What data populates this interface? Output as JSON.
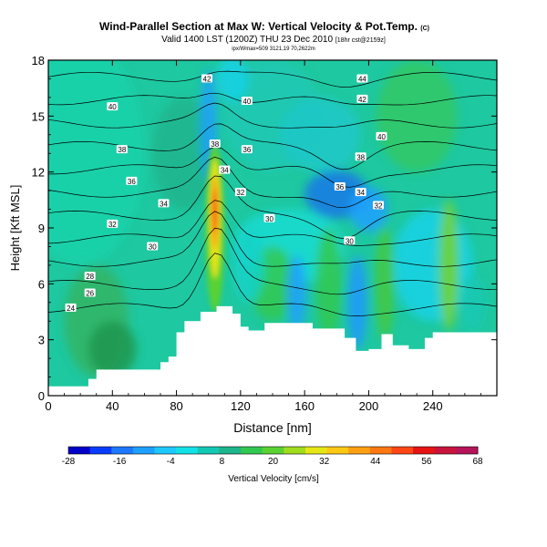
{
  "chart_data": {
    "type": "heatmap",
    "title": "Wind-Parallel Section at Max W: Vertical Velocity & Pot.Temp.",
    "title_mark": "(C)",
    "subtitle": "Valid 1400 LST (1200Z) THU 23 Dec 2010",
    "subtitle_note": "[18hr cst@2159z]",
    "info_line": "ipx/Wmax=509 3121,19 70,2622m",
    "xlabel": "Distance [nm]",
    "ylabel": "Height [Kft MSL]",
    "xlim": [
      0,
      280
    ],
    "ylim": [
      0,
      18
    ],
    "x_ticks": [
      0,
      40,
      80,
      120,
      160,
      200,
      240
    ],
    "y_ticks": [
      0,
      3,
      6,
      9,
      12,
      15,
      18
    ],
    "colorbar": {
      "label": "Vertical Velocity [cm/s]",
      "tick_labels": [
        -28,
        -16,
        -4,
        8,
        20,
        32,
        44,
        56,
        68
      ],
      "colors": [
        "#0000c8",
        "#0a3cff",
        "#1e78ff",
        "#1ea0ff",
        "#1ec8ff",
        "#14e1e6",
        "#14c8b4",
        "#1eb48c",
        "#32c850",
        "#5ad232",
        "#a0dc1e",
        "#e6e614",
        "#ffc814",
        "#ffa014",
        "#ff7814",
        "#ff4614",
        "#e61414",
        "#c8143c",
        "#b4145a"
      ]
    },
    "terrain_profile": [
      [
        0,
        0.5
      ],
      [
        20,
        0.5
      ],
      [
        25,
        0.9
      ],
      [
        30,
        1.4
      ],
      [
        60,
        1.4
      ],
      [
        70,
        1.8
      ],
      [
        75,
        2.1
      ],
      [
        80,
        3.4
      ],
      [
        85,
        4.0
      ],
      [
        95,
        4.5
      ],
      [
        105,
        4.8
      ],
      [
        110,
        4.8
      ],
      [
        115,
        4.4
      ],
      [
        120,
        3.7
      ],
      [
        125,
        3.5
      ],
      [
        135,
        3.9
      ],
      [
        150,
        3.9
      ],
      [
        165,
        3.6
      ],
      [
        175,
        3.6
      ],
      [
        185,
        3.1
      ],
      [
        192,
        2.4
      ],
      [
        200,
        2.5
      ],
      [
        208,
        3.3
      ],
      [
        215,
        2.7
      ],
      [
        225,
        2.5
      ],
      [
        235,
        3.1
      ],
      [
        240,
        3.4
      ],
      [
        260,
        3.4
      ],
      [
        270,
        3.4
      ],
      [
        280,
        3.4
      ]
    ],
    "theta_contour_labels": [
      {
        "text": "24",
        "x": 14,
        "y": 4.7
      },
      {
        "text": "26",
        "x": 26,
        "y": 5.5
      },
      {
        "text": "28",
        "x": 26,
        "y": 6.4
      },
      {
        "text": "30",
        "x": 65,
        "y": 8.0
      },
      {
        "text": "32",
        "x": 40,
        "y": 9.2
      },
      {
        "text": "34",
        "x": 72,
        "y": 10.3
      },
      {
        "text": "36",
        "x": 52,
        "y": 11.5
      },
      {
        "text": "38",
        "x": 46,
        "y": 13.2
      },
      {
        "text": "40",
        "x": 40,
        "y": 15.5
      },
      {
        "text": "42",
        "x": 99,
        "y": 17.0
      },
      {
        "text": "38",
        "x": 104,
        "y": 13.5
      },
      {
        "text": "34",
        "x": 110,
        "y": 12.1
      },
      {
        "text": "32",
        "x": 120,
        "y": 10.9
      },
      {
        "text": "36",
        "x": 124,
        "y": 13.2
      },
      {
        "text": "40",
        "x": 124,
        "y": 15.8
      },
      {
        "text": "30",
        "x": 138,
        "y": 9.5
      },
      {
        "text": "44",
        "x": 196,
        "y": 17.0
      },
      {
        "text": "42",
        "x": 196,
        "y": 15.9
      },
      {
        "text": "40",
        "x": 208,
        "y": 13.9
      },
      {
        "text": "38",
        "x": 195,
        "y": 12.8
      },
      {
        "text": "36",
        "x": 182,
        "y": 11.2
      },
      {
        "text": "34",
        "x": 195,
        "y": 10.9
      },
      {
        "text": "32",
        "x": 206,
        "y": 10.2
      },
      {
        "text": "30",
        "x": 188,
        "y": 8.3
      }
    ]
  }
}
